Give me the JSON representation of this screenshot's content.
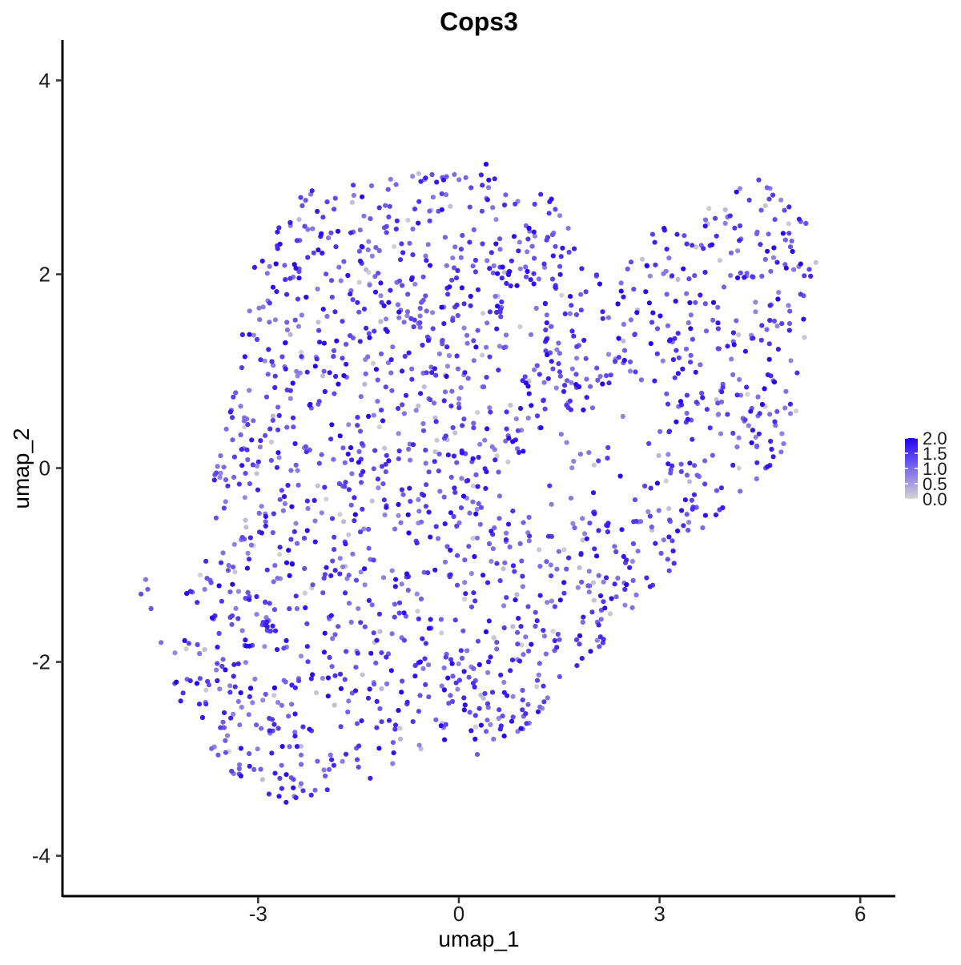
{
  "chart_data": {
    "type": "scatter",
    "title": "Cops3",
    "xlabel": "umap_1",
    "ylabel": "umap_2",
    "xlim": [
      -5.9,
      6.5
    ],
    "ylim": [
      -4.4,
      4.4
    ],
    "x_ticks": [
      -3,
      0,
      3,
      6
    ],
    "x_tick_labels": [
      "-3",
      "0",
      "3",
      "6"
    ],
    "y_ticks": [
      -4,
      -2,
      0,
      2,
      4
    ],
    "y_tick_labels": [
      "-4",
      "-2",
      "0",
      "2",
      "4"
    ],
    "grid": false,
    "legend_position": "right",
    "color_scale": {
      "low_color": "#d3d3d3",
      "high_color": "#2200ff",
      "min": 0.0,
      "max": 2.0,
      "breaks": [
        2.0,
        1.5,
        1.0,
        0.5,
        0.0
      ],
      "labels": [
        "2.0",
        "1.5",
        "1.0",
        "0.5",
        "0.0"
      ]
    },
    "point_count": 1900,
    "seed": 7,
    "outline": [
      [
        -3.1,
        2.05
      ],
      [
        -2.3,
        2.9
      ],
      [
        -1.0,
        3.05
      ],
      [
        0.0,
        3.05
      ],
      [
        0.4,
        3.15
      ],
      [
        1.1,
        2.9
      ],
      [
        1.6,
        2.75
      ],
      [
        1.8,
        2.1
      ],
      [
        2.3,
        1.9
      ],
      [
        2.8,
        2.4
      ],
      [
        3.5,
        2.6
      ],
      [
        4.1,
        2.85
      ],
      [
        4.5,
        3.05
      ],
      [
        5.0,
        2.7
      ],
      [
        5.4,
        2.4
      ],
      [
        5.4,
        1.9
      ],
      [
        5.1,
        1.0
      ],
      [
        5.0,
        0.2
      ],
      [
        4.6,
        -0.1
      ],
      [
        3.7,
        -0.6
      ],
      [
        3.0,
        -1.2
      ],
      [
        2.3,
        -1.7
      ],
      [
        1.6,
        -2.2
      ],
      [
        0.9,
        -2.8
      ],
      [
        0.3,
        -3.0
      ],
      [
        -0.3,
        -2.8
      ],
      [
        -0.7,
        -3.0
      ],
      [
        -1.3,
        -3.2
      ],
      [
        -2.0,
        -3.4
      ],
      [
        -2.5,
        -3.5
      ],
      [
        -3.3,
        -3.2
      ],
      [
        -4.0,
        -2.7
      ],
      [
        -4.3,
        -2.2
      ],
      [
        -4.3,
        -1.6
      ],
      [
        -4.0,
        -1.2
      ],
      [
        -3.7,
        -0.8
      ],
      [
        -3.7,
        -0.2
      ],
      [
        -3.4,
        0.8
      ],
      [
        -3.3,
        1.4
      ]
    ],
    "notch": [
      [
        0.6,
        -0.2
      ],
      [
        1.3,
        0.5
      ],
      [
        2.0,
        0.6
      ],
      [
        2.4,
        0.9
      ],
      [
        2.9,
        0.6
      ],
      [
        3.0,
        0.0
      ],
      [
        2.6,
        -0.3
      ],
      [
        1.8,
        -0.5
      ],
      [
        1.0,
        -0.5
      ]
    ],
    "outliers": [
      {
        "x": -4.75,
        "y": -1.3,
        "v": 1.3
      },
      {
        "x": -4.65,
        "y": -1.25,
        "v": 1.1
      },
      {
        "x": -4.68,
        "y": -1.15,
        "v": 0.9
      },
      {
        "x": -4.6,
        "y": -1.45,
        "v": 1.2
      },
      {
        "x": -4.45,
        "y": -1.8,
        "v": 1.0
      }
    ]
  }
}
